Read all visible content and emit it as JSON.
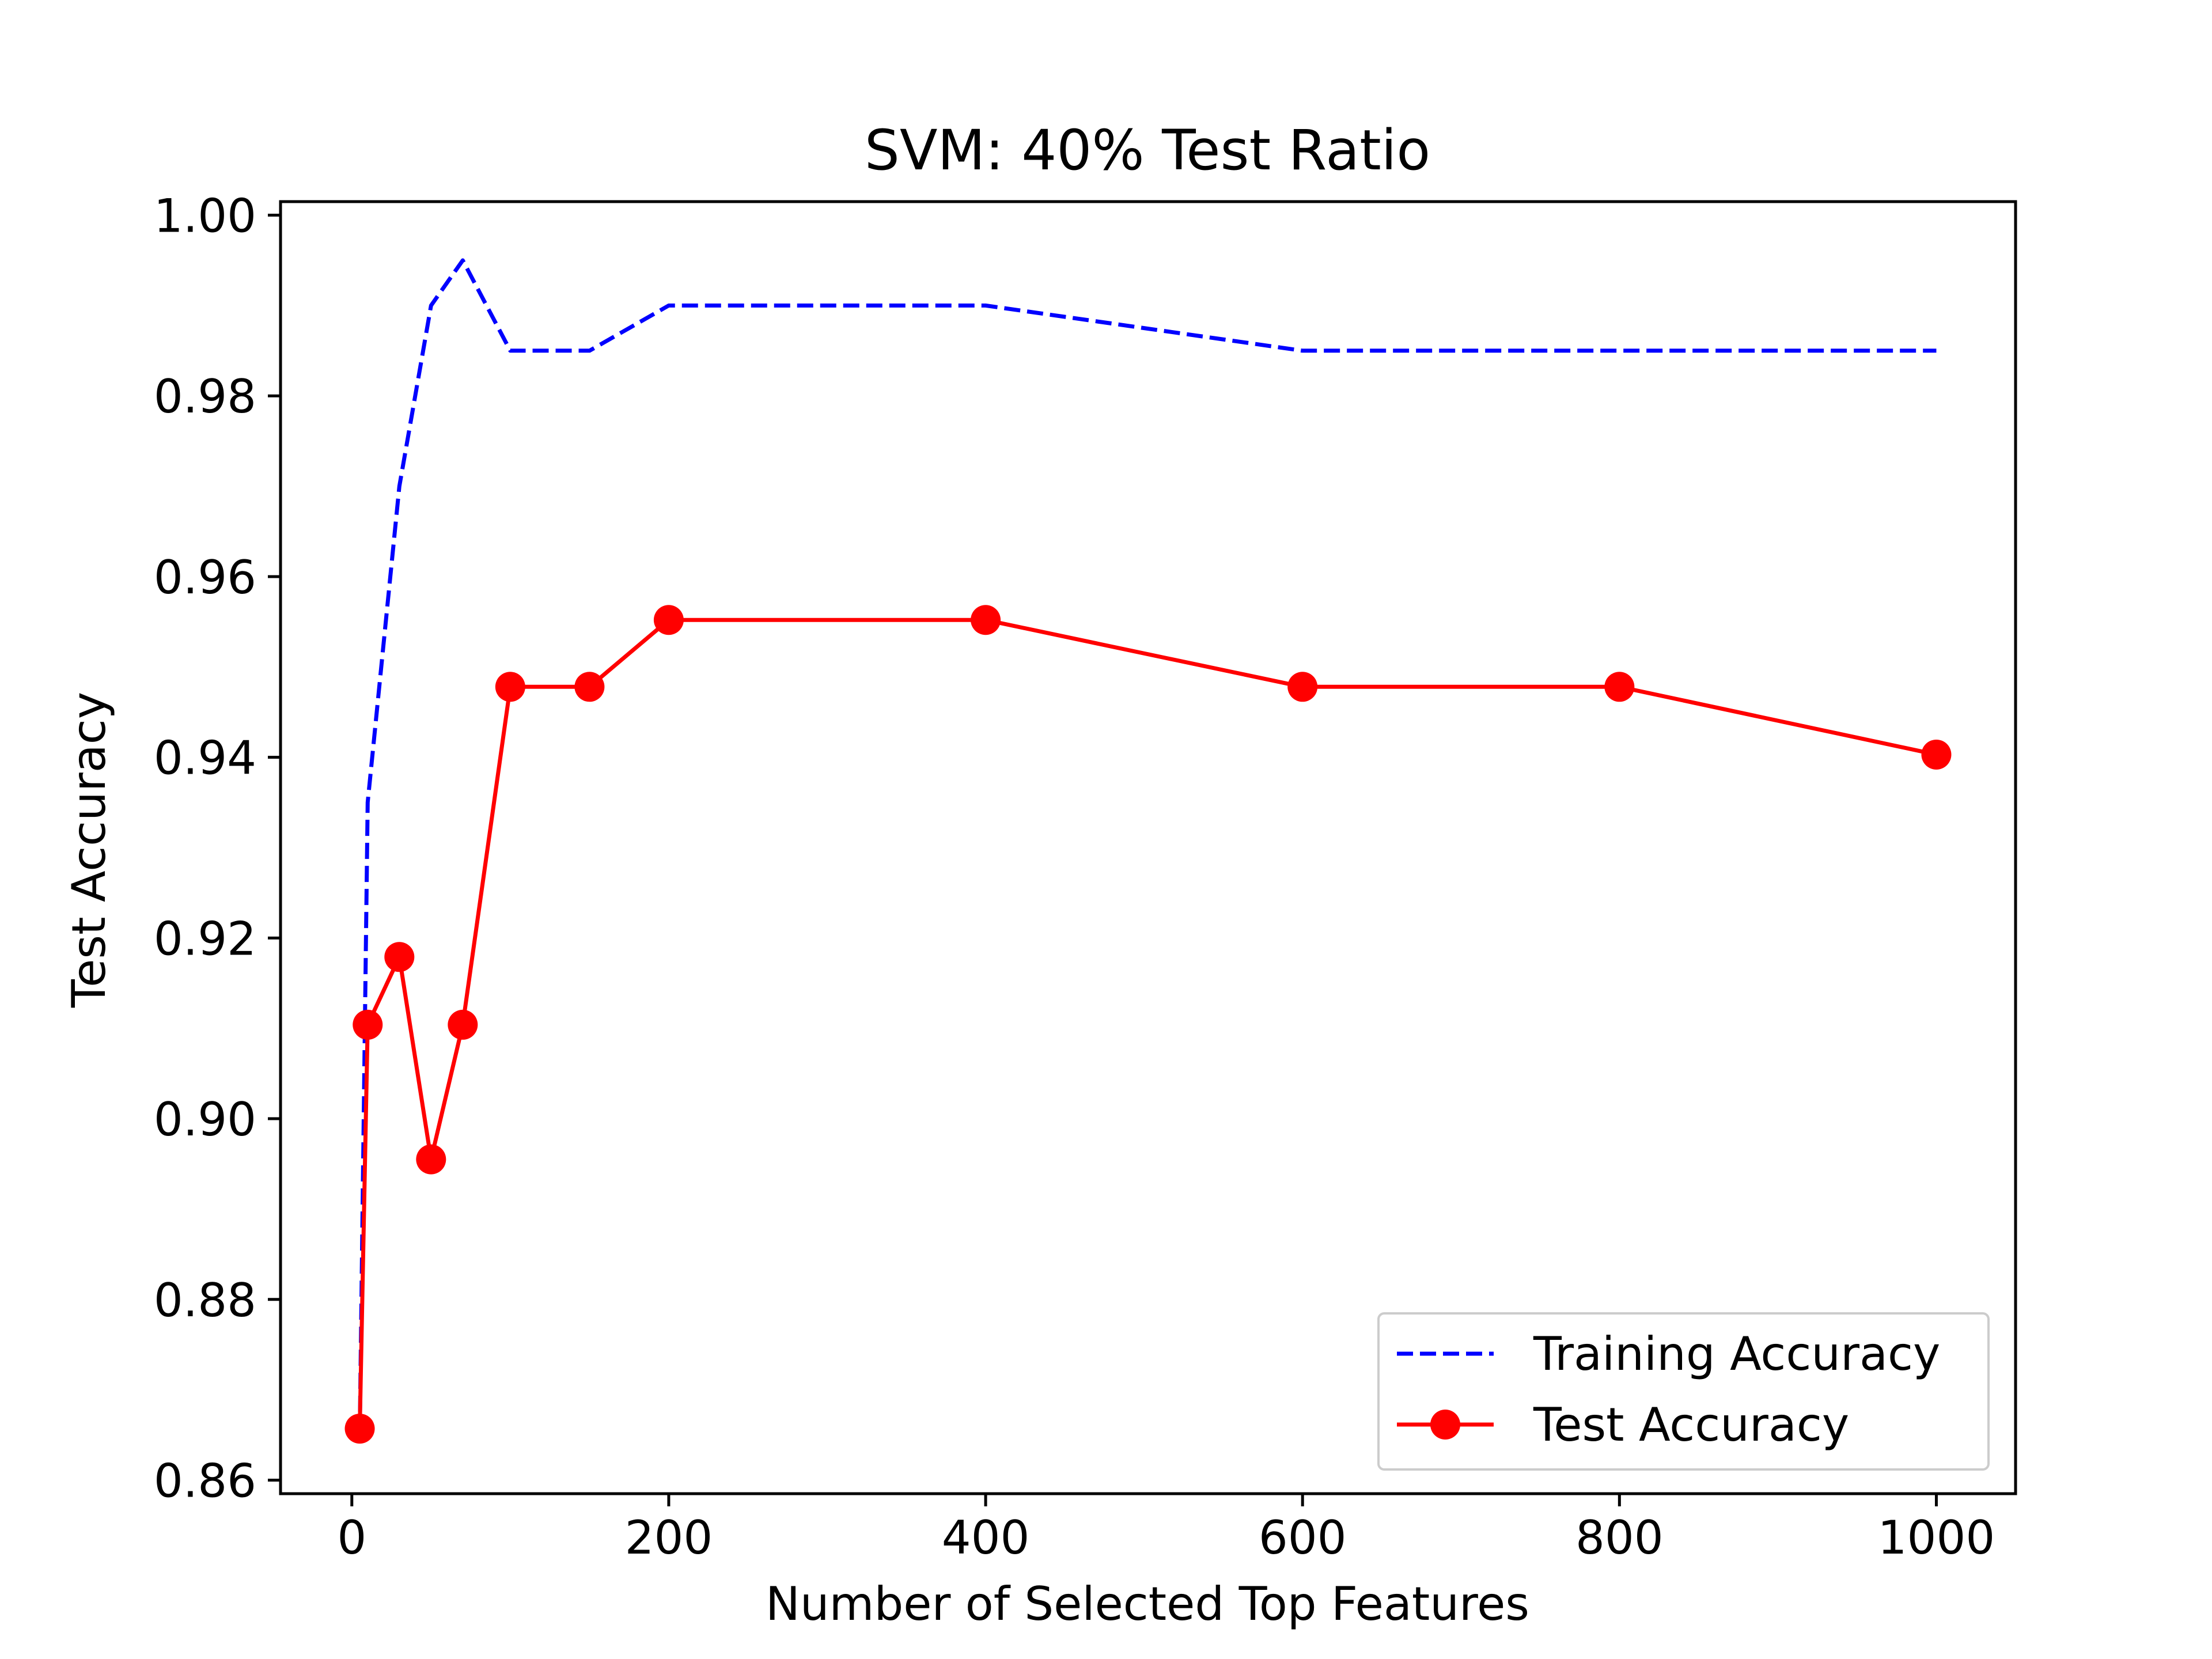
{
  "chart_data": {
    "type": "line",
    "title": "SVM: 40% Test Ratio",
    "xlabel": "Number of Selected Top Features",
    "ylabel": "Test Accuracy",
    "xlim": [
      -45,
      1050
    ],
    "ylim": [
      0.8585,
      1.0015
    ],
    "xticks": [
      0,
      200,
      400,
      600,
      800,
      1000
    ],
    "xtick_labels": [
      "0",
      "200",
      "400",
      "600",
      "800",
      "1000"
    ],
    "yticks": [
      0.86,
      0.88,
      0.9,
      0.92,
      0.94,
      0.96,
      0.98,
      1.0
    ],
    "ytick_labels": [
      "0.86",
      "0.88",
      "0.90",
      "0.92",
      "0.94",
      "0.96",
      "0.98",
      "1.00"
    ],
    "grid": false,
    "legend_position": "lower-right",
    "series": [
      {
        "name": "Training Accuracy",
        "color": "#0000ff",
        "style": "dashed",
        "marker": "none",
        "x": [
          5,
          10,
          30,
          50,
          70,
          100,
          150,
          200,
          400,
          600,
          800,
          1000
        ],
        "y": [
          0.865,
          0.935,
          0.97,
          0.99,
          0.995,
          0.985,
          0.985,
          0.99,
          0.99,
          0.985,
          0.985,
          0.985
        ]
      },
      {
        "name": "Test Accuracy",
        "color": "#ff0000",
        "style": "solid",
        "marker": "circle",
        "x": [
          5,
          10,
          30,
          50,
          70,
          100,
          150,
          200,
          400,
          600,
          800,
          1000
        ],
        "y": [
          0.8657,
          0.9104,
          0.9179,
          0.8955,
          0.9104,
          0.9478,
          0.9478,
          0.9552,
          0.9552,
          0.9478,
          0.9478,
          0.9403
        ]
      }
    ]
  }
}
